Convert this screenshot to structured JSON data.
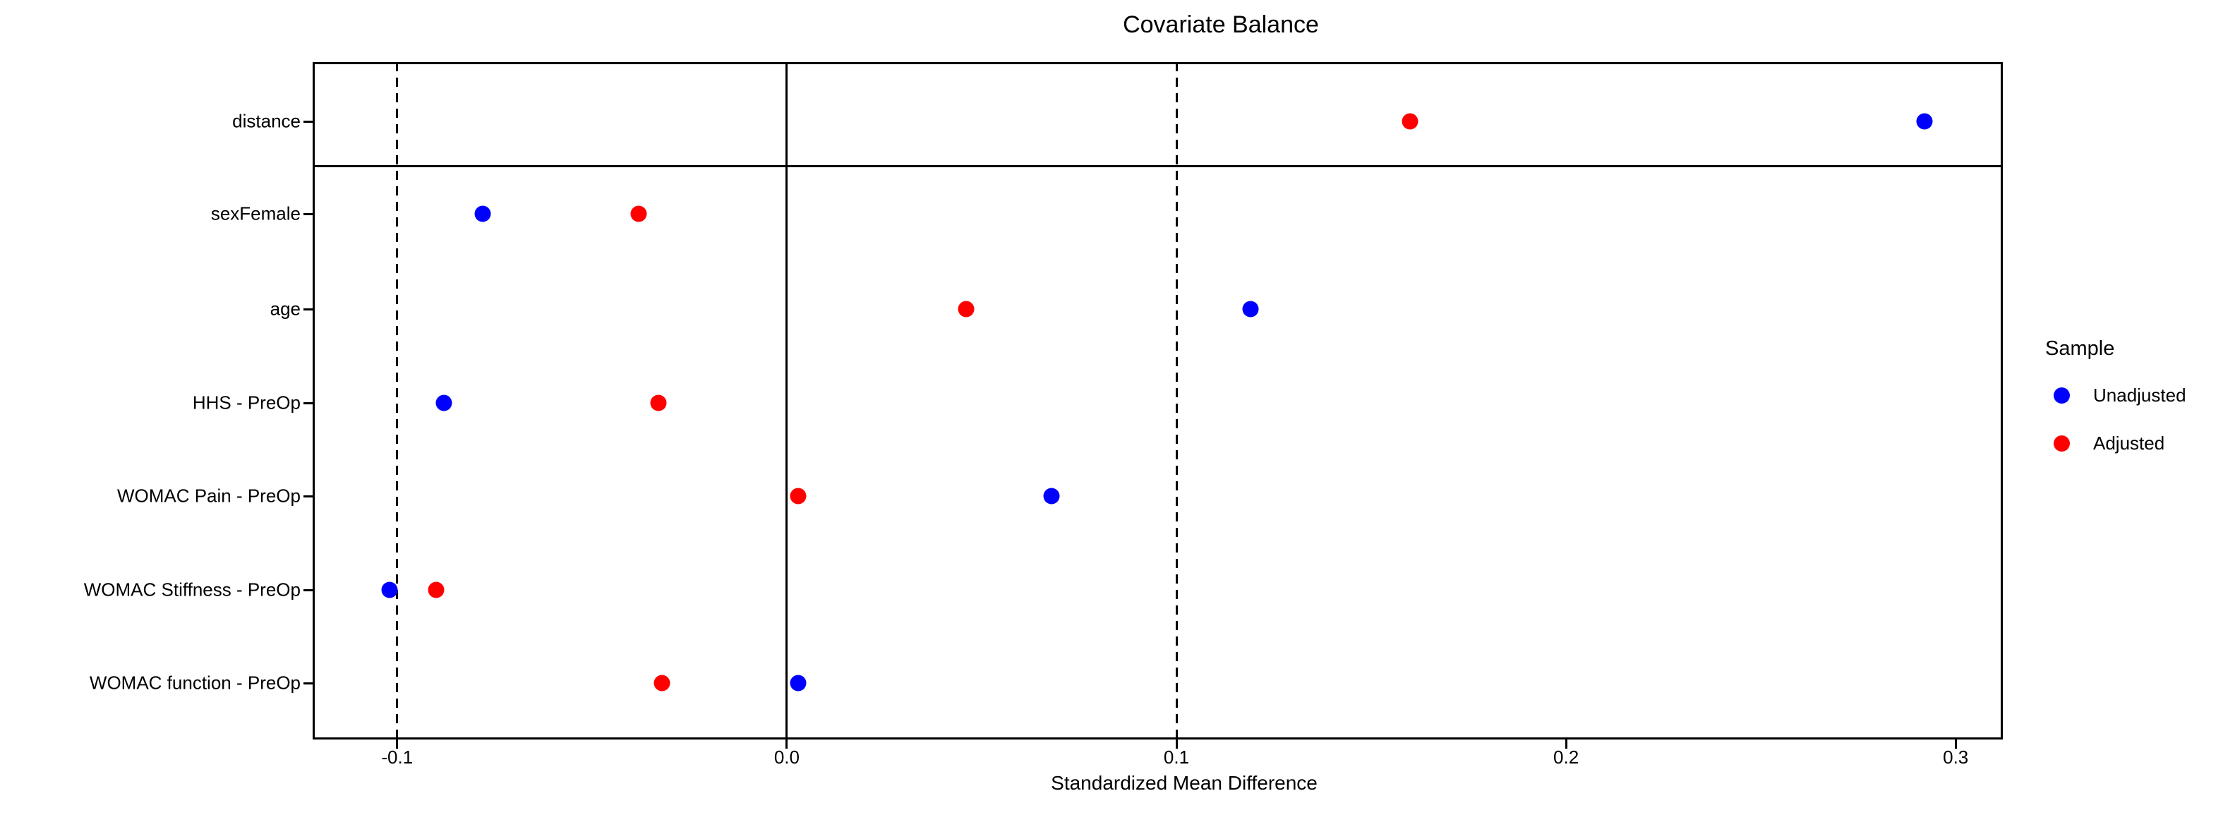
{
  "title": "Covariate Balance",
  "xlabel": "Standardized Mean Difference",
  "legend": {
    "title": "Sample",
    "items": [
      {
        "label": "Unadjusted",
        "color": "#0000ff"
      },
      {
        "label": "Adjusted",
        "color": "#ff0000"
      }
    ]
  },
  "colors": {
    "unadjusted": "#0000ff",
    "adjusted": "#ff0000",
    "axis": "#000000",
    "background": "#ffffff"
  },
  "chart_data": {
    "type": "scatter",
    "title": "Covariate Balance",
    "xlabel": "Standardized Mean Difference",
    "ylabel": "",
    "categories": [
      "distance",
      "sexFemale",
      "age",
      "HHS - PreOp",
      "WOMAC Pain - PreOp",
      "WOMAC Stiffness - PreOp",
      "WOMAC function - PreOp"
    ],
    "series": [
      {
        "name": "Unadjusted",
        "color": "#0000ff",
        "values": [
          0.292,
          -0.078,
          0.119,
          -0.088,
          0.068,
          -0.102,
          0.003
        ]
      },
      {
        "name": "Adjusted",
        "color": "#ff0000",
        "values": [
          0.16,
          -0.038,
          0.046,
          -0.033,
          0.003,
          -0.09,
          -0.032
        ]
      }
    ],
    "x_ticks": [
      -0.1,
      0.0,
      0.1,
      0.2,
      0.3
    ],
    "x_tick_labels": [
      "-0.1",
      "0.0",
      "0.1",
      "0.2",
      "0.3"
    ],
    "xlim": [
      -0.1217,
      0.3121
    ],
    "reference_lines": {
      "solid": [
        0.0
      ],
      "dashed": [
        -0.1,
        0.1
      ]
    },
    "facet_top_row": "distance",
    "grid": false,
    "legend_position": "right"
  }
}
